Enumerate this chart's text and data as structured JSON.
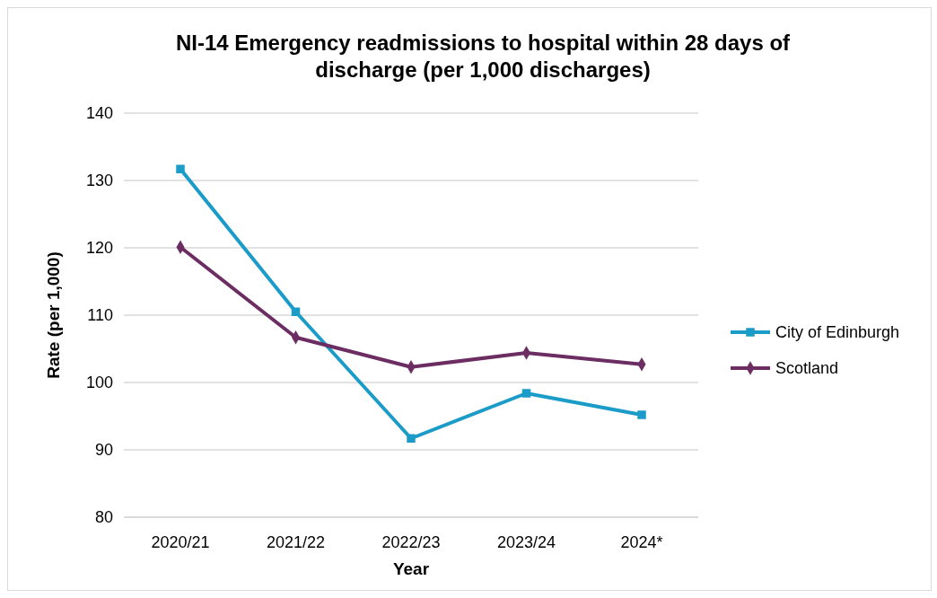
{
  "chart_data": {
    "type": "line",
    "title": "NI-14 Emergency readmissions to hospital within 28 days of discharge (per 1,000 discharges)",
    "xlabel": "Year",
    "ylabel": "Rate (per 1,000)",
    "categories": [
      "2020/21",
      "2021/22",
      "2022/23",
      "2023/24",
      "2024*"
    ],
    "series": [
      {
        "name": "City of Edinburgh",
        "color": "#1b9bc8",
        "marker": "square",
        "values": [
          131.7,
          110.5,
          91.7,
          98.4,
          95.2
        ]
      },
      {
        "name": "Scotland",
        "color": "#6b2d62",
        "marker": "diamond",
        "values": [
          120.1,
          106.7,
          102.3,
          104.4,
          102.7
        ]
      }
    ],
    "ylim": [
      80,
      140
    ],
    "yticks": [
      80,
      90,
      100,
      110,
      120,
      130,
      140
    ],
    "grid": "y",
    "legend": "right"
  }
}
